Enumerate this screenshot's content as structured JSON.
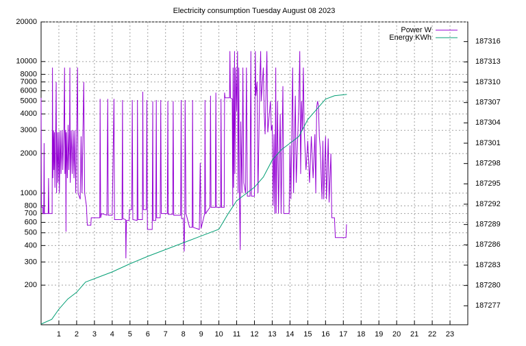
{
  "chart_data": {
    "type": "line",
    "title": "Electricity consumption Tuesday August 08 2023",
    "xlim": [
      0,
      24
    ],
    "xticks": [
      1,
      2,
      3,
      4,
      5,
      6,
      7,
      8,
      9,
      10,
      11,
      12,
      13,
      14,
      15,
      16,
      17,
      18,
      19,
      20,
      21,
      22,
      23
    ],
    "ylim": [
      100,
      20000
    ],
    "ylog": true,
    "yticks": [
      200,
      300,
      400,
      500,
      600,
      700,
      800,
      1000,
      2000,
      3000,
      4000,
      5000,
      6000,
      7000,
      8000,
      10000,
      20000
    ],
    "y2lim": [
      187274.2,
      187318.9
    ],
    "y2ticks": [
      187277,
      187280,
      187283,
      187286,
      187289,
      187292,
      187295,
      187298,
      187301,
      187304,
      187307,
      187310,
      187313,
      187316
    ],
    "grid": true,
    "legend": "top-right",
    "series": [
      {
        "name": "Power W",
        "color": "#9400d3",
        "x": [
          0,
          0.02,
          0.1,
          0.1,
          0.15,
          0.17,
          0.19,
          0.4,
          0.42,
          0.44,
          0.62,
          0.64,
          0.66,
          0.7,
          0.72,
          0.75,
          0.78,
          0.82,
          0.85,
          0.87,
          0.92,
          0.95,
          1.0,
          1.03,
          1.08,
          1.12,
          1.18,
          1.22,
          1.28,
          1.32,
          1.34,
          1.38,
          1.4,
          1.42,
          1.48,
          1.52,
          1.56,
          1.6,
          1.62,
          1.64,
          1.7,
          1.75,
          1.8,
          1.85,
          1.9,
          1.95,
          2.0,
          2.05,
          2.08,
          2.2,
          2.25,
          2.3,
          2.35,
          2.4,
          2.45,
          2.55,
          2.6,
          2.8,
          2.82,
          3.3,
          3.32,
          3.35,
          3.4,
          3.7,
          3.75,
          3.78,
          4.0,
          4.1,
          4.13,
          4.55,
          4.58,
          4.6,
          4.75,
          4.77,
          4.8,
          4.95,
          4.97,
          5.1,
          5.13,
          5.16,
          5.4,
          5.42,
          5.45,
          5.7,
          5.72,
          5.75,
          5.92,
          5.95,
          5.98,
          6.25,
          6.28,
          6.3,
          6.45,
          6.48,
          6.5,
          6.7,
          6.73,
          6.76,
          7.1,
          7.13,
          7.15,
          7.4,
          7.43,
          7.46,
          7.85,
          7.88,
          7.9,
          8.0,
          8.05,
          8.08,
          8.1,
          8.15,
          8.35,
          8.5,
          8.52,
          8.55,
          8.9,
          8.95,
          9.0,
          9.2,
          9.22,
          9.25,
          9.5,
          9.53,
          9.56,
          9.8,
          9.83,
          9.86,
          10.1,
          10.12,
          10.15,
          10.3,
          10.32,
          10.35,
          10.6,
          10.62,
          10.65,
          10.75,
          10.78,
          10.8,
          10.83,
          10.88,
          10.9,
          10.95,
          11.0,
          11.05,
          11.08,
          11.12,
          11.15,
          11.2,
          11.23,
          11.3,
          11.35,
          11.4,
          11.5,
          11.55,
          11.6,
          11.75,
          11.8,
          11.83,
          12.0,
          12.05,
          12.08,
          12.15,
          12.2,
          12.3,
          12.35,
          12.38,
          12.5,
          12.55,
          12.6,
          12.7,
          12.75,
          12.9,
          12.95,
          13.0,
          13.05,
          13.1,
          13.15,
          13.2,
          13.22,
          13.3,
          13.35,
          13.45,
          13.5,
          13.6,
          13.65,
          13.95,
          14.0,
          14.05,
          14.15,
          14.2,
          14.3,
          14.35,
          14.5,
          14.55,
          14.6,
          14.65,
          14.7,
          14.75,
          14.8,
          14.9,
          15.0,
          15.1,
          15.2,
          15.3,
          15.4,
          15.45,
          15.5,
          15.55,
          15.6,
          15.65,
          15.7,
          15.8,
          15.85,
          15.9,
          16.0,
          16.05,
          16.15,
          16.2,
          16.3,
          16.35,
          16.5,
          16.55,
          17.15,
          17.18
        ],
        "values": [
          5300,
          780,
          780,
          700,
          700,
          2400,
          700,
          700,
          1300,
          700,
          700,
          9000,
          1300,
          3000,
          1500,
          2900,
          1100,
          2800,
          7000,
          1000,
          2900,
          1200,
          2900,
          1000,
          3000,
          1400,
          3000,
          1500,
          3000,
          9000,
          1400,
          3000,
          510,
          2900,
          1300,
          3300,
          1500,
          3000,
          9000,
          1200,
          3000,
          1400,
          3000,
          1300,
          3000,
          1000,
          3000,
          9000,
          1000,
          900,
          2700,
          1000,
          2700,
          7000,
          1000,
          800,
          570,
          570,
          650,
          650,
          5200,
          650,
          700,
          680,
          5200,
          680,
          680,
          5200,
          630,
          630,
          5100,
          640,
          630,
          320,
          620,
          620,
          750,
          750,
          5100,
          630,
          620,
          5100,
          630,
          630,
          5900,
          750,
          750,
          5100,
          530,
          530,
          5000,
          620,
          620,
          5100,
          650,
          650,
          5100,
          700,
          700,
          5000,
          690,
          690,
          5000,
          680,
          680,
          5100,
          640,
          640,
          360,
          700,
          5100,
          700,
          550,
          550,
          5100,
          550,
          530,
          1700,
          540,
          700,
          5100,
          700,
          780,
          5500,
          780,
          780,
          5800,
          780,
          780,
          5200,
          780,
          780,
          5800,
          5300,
          5300,
          12000,
          5300,
          5200,
          800,
          9000,
          1100,
          12000,
          1400,
          9000,
          4200,
          12000,
          1000,
          9000,
          1100,
          370,
          3500,
          1000,
          9000,
          1200,
          1000,
          9000,
          950,
          950,
          12000,
          950,
          950,
          12000,
          5500,
          7000,
          1000,
          7000,
          12000,
          5000,
          9000,
          4000,
          2800,
          12000,
          2900,
          5000,
          3000,
          3300,
          800,
          2800,
          700,
          9000,
          700,
          5000,
          700,
          4000,
          700,
          6500,
          700,
          700,
          2300,
          900,
          9000,
          1000,
          5500,
          1200,
          5000,
          12000,
          1400,
          5000,
          3000,
          9000,
          3000,
          1500,
          2500,
          1200,
          2700,
          1300,
          2800,
          1000,
          4500,
          5000,
          4600,
          2700,
          2200,
          900,
          2500,
          900,
          2700,
          900,
          2600,
          850,
          2000,
          650,
          650,
          460,
          460,
          580
        ]
      },
      {
        "name": "Energy KWh",
        "color": "#009e73",
        "axis": "y2",
        "x": [
          0,
          0.6,
          1,
          1.5,
          2,
          2.5,
          3,
          4,
          5,
          6,
          7,
          8,
          9,
          10,
          10.5,
          11,
          11.5,
          12,
          12.5,
          13,
          13.5,
          14,
          14.5,
          15,
          15.5,
          16,
          16.5,
          17.2
        ],
        "values": [
          187274.3,
          187275,
          187276.5,
          187278,
          187279,
          187280.5,
          187281,
          187282,
          187283.2,
          187284.3,
          187285.3,
          187286.3,
          187287.3,
          187288.3,
          187290.5,
          187292.5,
          187293.5,
          187294.5,
          187296,
          187298.5,
          187300,
          187301,
          187302,
          187304.5,
          187306,
          187307.5,
          187308,
          187308.2
        ]
      }
    ]
  }
}
